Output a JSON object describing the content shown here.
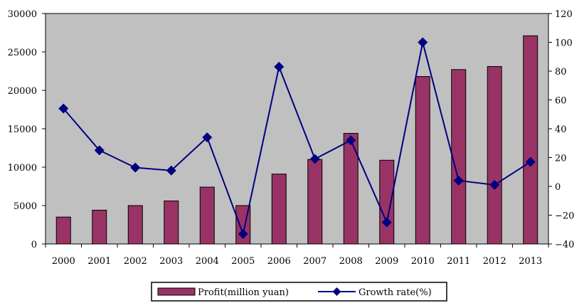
{
  "chart_data": {
    "type": "bar",
    "categories": [
      "2000",
      "2001",
      "2002",
      "2003",
      "2004",
      "2005",
      "2006",
      "2007",
      "2008",
      "2009",
      "2010",
      "2011",
      "2012",
      "2013"
    ],
    "series": [
      {
        "name": "Profit(million yuan)",
        "type": "bar",
        "axis": "left",
        "color": "#993366",
        "values": [
          3500,
          4400,
          5000,
          5600,
          7400,
          5000,
          9100,
          11000,
          14400,
          10900,
          21800,
          22700,
          23100,
          27100
        ]
      },
      {
        "name": "Growth rate(%)",
        "type": "line",
        "axis": "right",
        "color": "#000080",
        "marker": "diamond",
        "values": [
          54,
          25,
          13,
          11,
          34,
          -33,
          83,
          19,
          32,
          -25,
          100,
          4,
          1,
          17
        ]
      }
    ],
    "y_left": {
      "min": 0,
      "max": 30000,
      "ticks": [
        "0",
        "5000",
        "10000",
        "15000",
        "20000",
        "25000",
        "30000"
      ]
    },
    "y_right": {
      "min": -40,
      "max": 120,
      "ticks": [
        "-40",
        "-20",
        "0",
        "20",
        "40",
        "60",
        "80",
        "100",
        "120"
      ]
    },
    "plot_background": "#c0c0c0",
    "grid": false,
    "legend_position": "bottom-center"
  }
}
